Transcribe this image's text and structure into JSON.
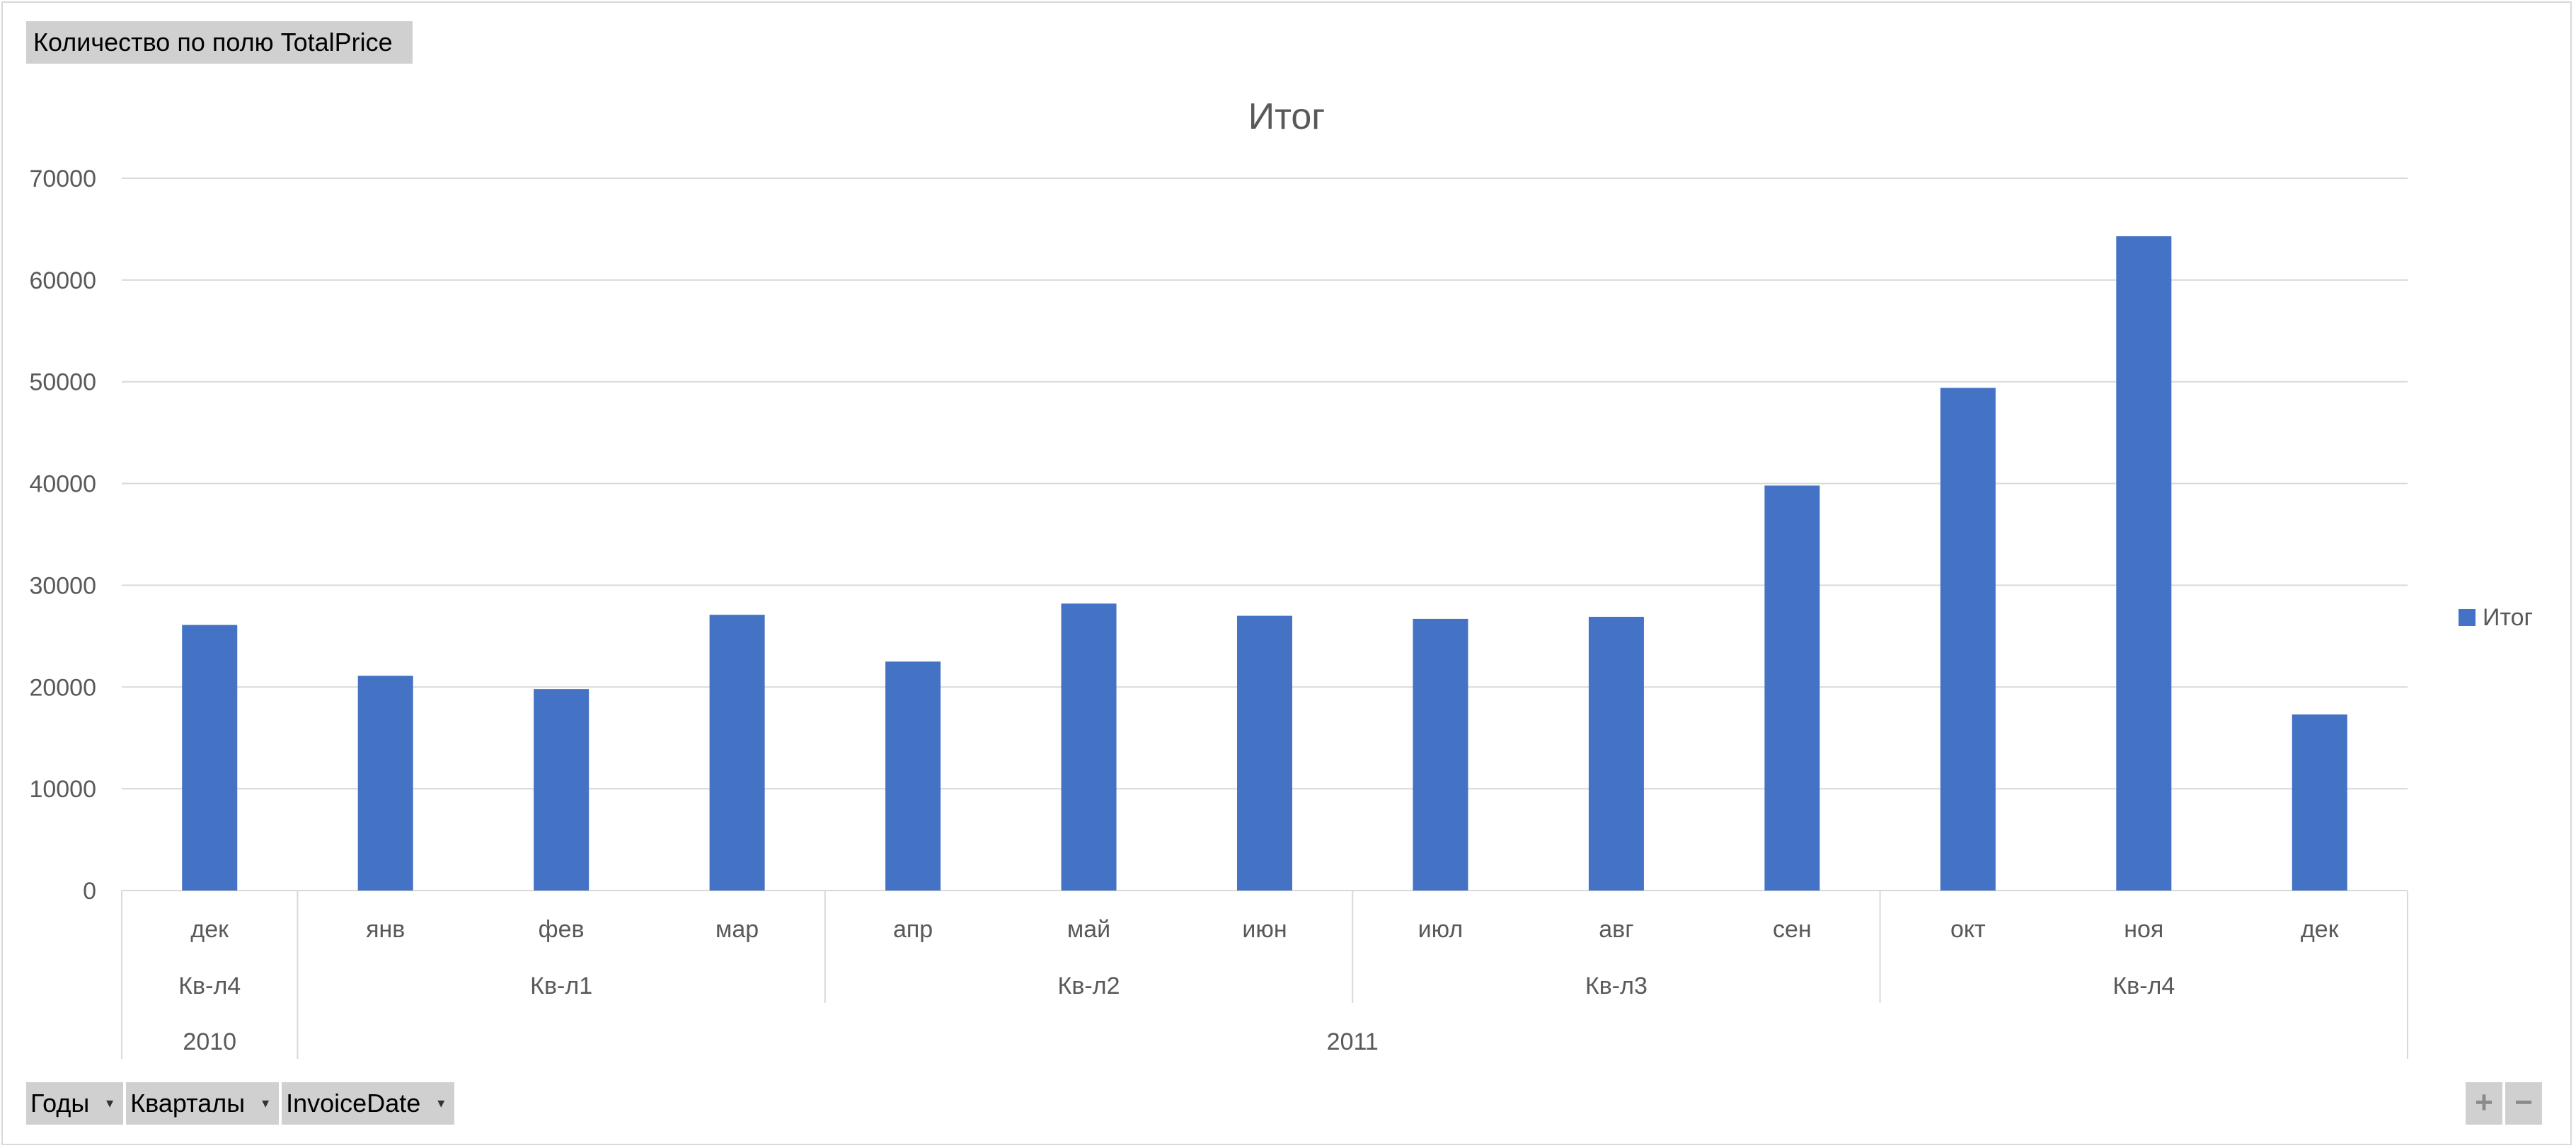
{
  "value_field_label": "Количество по полю TotalPrice",
  "axis_fields": [
    {
      "label": "Годы",
      "icon": "dropdown-arrow-icon"
    },
    {
      "label": "Кварталы",
      "icon": "dropdown-arrow-icon"
    },
    {
      "label": "InvoiceDate",
      "icon": "dropdown-arrow-icon"
    }
  ],
  "zoom": {
    "expand_label": "+",
    "collapse_label": "−"
  },
  "chart_data": {
    "type": "bar",
    "title": "Итог",
    "ylim": [
      0,
      70000
    ],
    "y_ticks": [
      "0",
      "10000",
      "20000",
      "30000",
      "40000",
      "50000",
      "60000",
      "70000"
    ],
    "grid": true,
    "legend_position": "right",
    "bar_color": "#4472c4",
    "categories": [
      "дек",
      "янв",
      "фев",
      "мар",
      "апр",
      "май",
      "июн",
      "июл",
      "авг",
      "сен",
      "окт",
      "ноя",
      "дек"
    ],
    "series": [
      {
        "name": "Итог",
        "values": [
          26100,
          21100,
          19800,
          27100,
          22500,
          28200,
          27000,
          26700,
          26900,
          39800,
          49400,
          64300,
          17300
        ]
      }
    ],
    "quarters": [
      {
        "label": "Кв-л4",
        "count": 1
      },
      {
        "label": "Кв-л1",
        "count": 3
      },
      {
        "label": "Кв-л2",
        "count": 3
      },
      {
        "label": "Кв-л3",
        "count": 3
      },
      {
        "label": "Кв-л4",
        "count": 3
      }
    ],
    "years": [
      {
        "label": "2010",
        "count": 1
      },
      {
        "label": "2011",
        "count": 12
      }
    ]
  }
}
